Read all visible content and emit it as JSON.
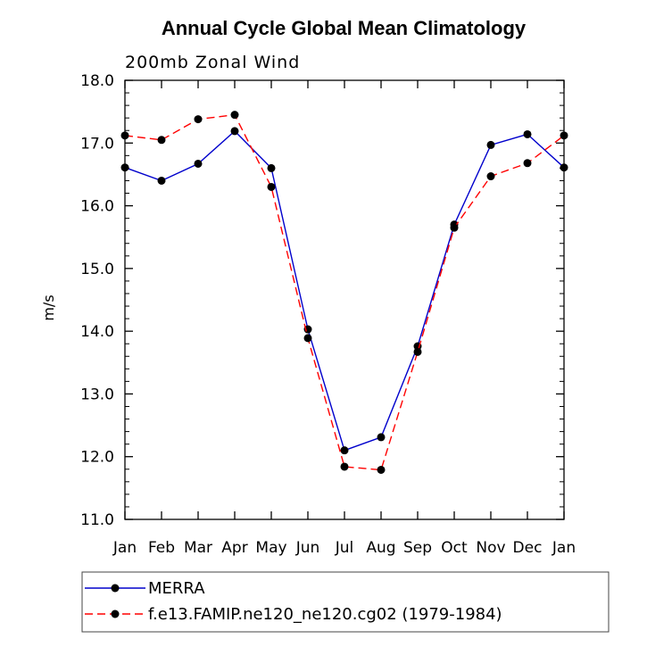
{
  "chart_data": {
    "type": "line",
    "title": "Annual Cycle Global Mean Climatology",
    "subtitle": "200mb Zonal Wind",
    "xlabel": "",
    "ylabel": "m/s",
    "categories": [
      "Jan",
      "Feb",
      "Mar",
      "Apr",
      "May",
      "Jun",
      "Jul",
      "Aug",
      "Sep",
      "Oct",
      "Nov",
      "Dec",
      "Jan"
    ],
    "ylim": [
      11.0,
      18.0
    ],
    "yticks": [
      "11.0",
      "12.0",
      "13.0",
      "14.0",
      "15.0",
      "16.0",
      "17.0",
      "18.0"
    ],
    "series": [
      {
        "name": "MERRA",
        "color": "#0000cc",
        "dash": "solid",
        "values": [
          16.61,
          16.4,
          16.67,
          17.19,
          16.6,
          14.03,
          12.1,
          12.31,
          13.76,
          15.7,
          16.97,
          17.14,
          16.61
        ]
      },
      {
        "name": "f.e13.FAMIP.ne120_ne120.cg02 (1979-1984)",
        "color": "#ff0000",
        "dash": "dashed",
        "values": [
          17.12,
          17.05,
          17.38,
          17.45,
          16.3,
          13.89,
          11.84,
          11.79,
          13.67,
          15.65,
          16.47,
          16.68,
          17.12
        ]
      }
    ]
  }
}
